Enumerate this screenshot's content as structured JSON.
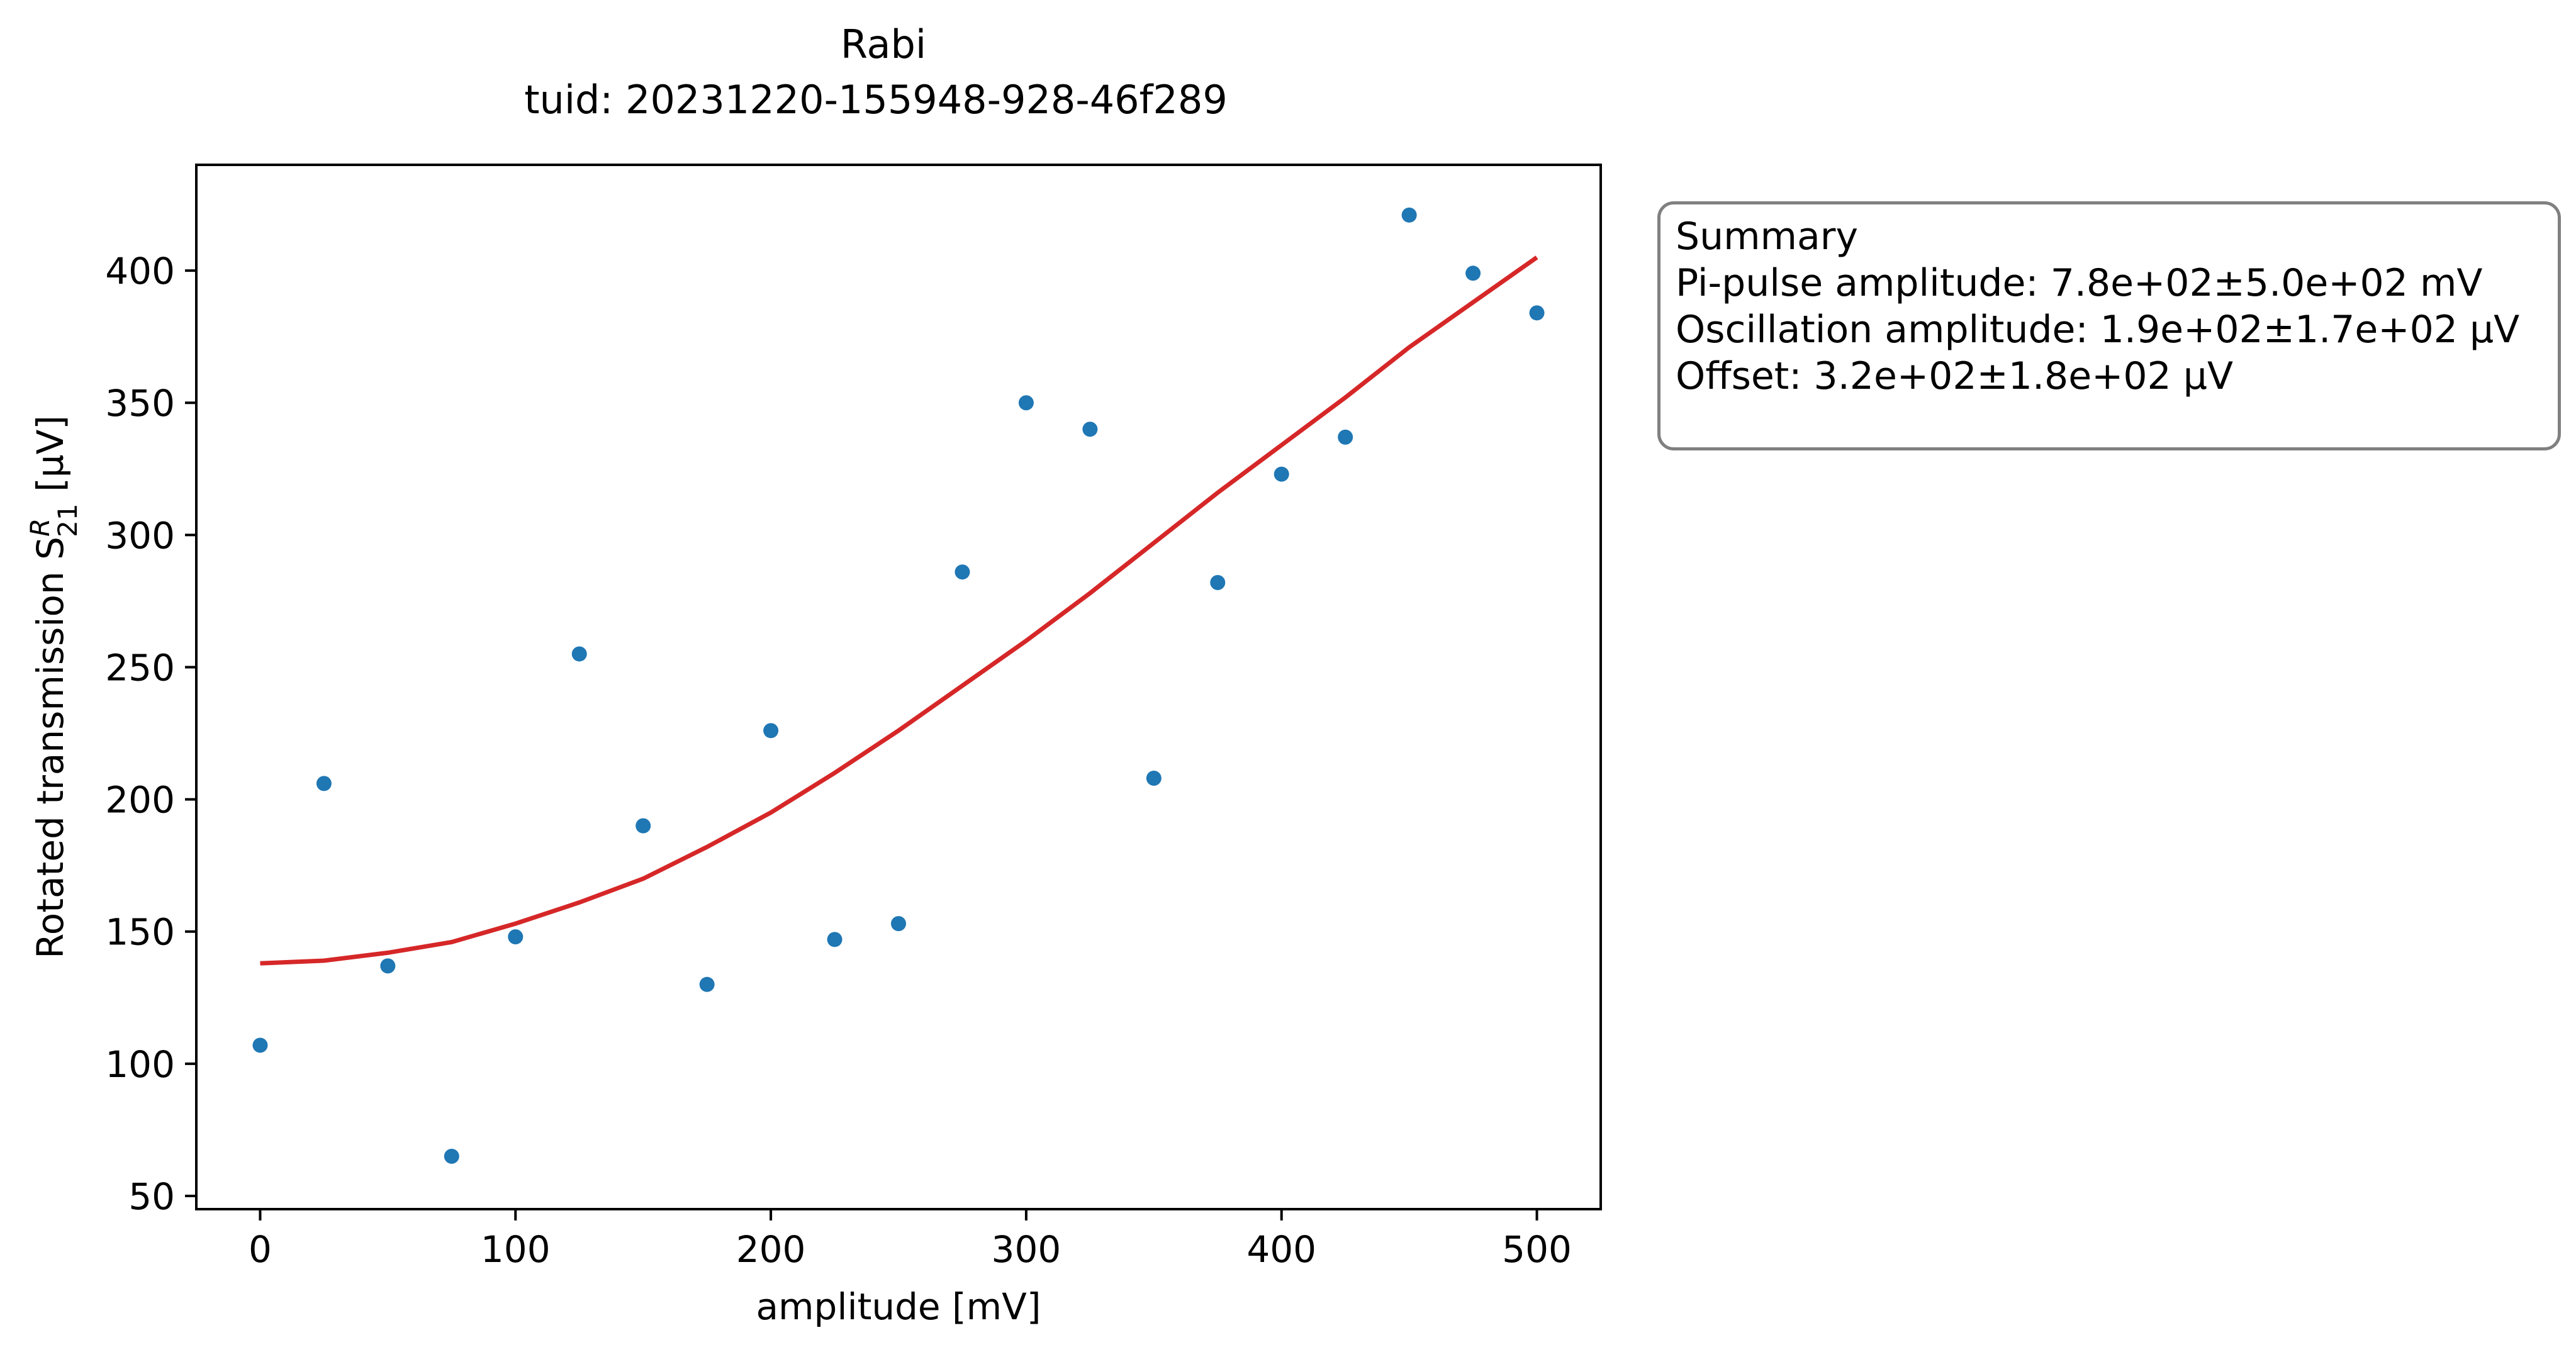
{
  "chart_data": {
    "type": "scatter",
    "title": "Rabi",
    "subtitle": "tuid: 20231220-155948-928-46f289",
    "xlabel": "amplitude [mV]",
    "ylabel": "Rotated transmission S",
    "ylabel_sup": "R",
    "ylabel_sub": "21",
    "ylabel_unit": " [µV]",
    "xlim": [
      -25,
      525
    ],
    "ylim": [
      45,
      440
    ],
    "xticks": [
      0,
      100,
      200,
      300,
      400,
      500
    ],
    "yticks": [
      50,
      100,
      150,
      200,
      250,
      300,
      350,
      400
    ],
    "grid": false,
    "series": [
      {
        "kind": "points",
        "color": "#1f77b4",
        "x": [
          0,
          25,
          50,
          75,
          100,
          125,
          150,
          175,
          200,
          225,
          250,
          275,
          300,
          325,
          350,
          375,
          400,
          425,
          450,
          475,
          500
        ],
        "y": [
          107,
          206,
          137,
          65,
          148,
          255,
          190,
          130,
          226,
          147,
          153,
          286,
          350,
          340,
          208,
          282,
          323,
          337,
          421,
          399,
          384
        ]
      },
      {
        "kind": "fit",
        "color": "#d62728",
        "x": [
          0,
          25,
          50,
          75,
          100,
          125,
          150,
          175,
          200,
          225,
          250,
          275,
          300,
          325,
          350,
          375,
          400,
          425,
          450,
          475,
          500
        ],
        "y": [
          138,
          139,
          142,
          146,
          153,
          161,
          170,
          182,
          195,
          210,
          226,
          243,
          260,
          278,
          297,
          316,
          334,
          352,
          371,
          388,
          405
        ]
      }
    ]
  },
  "summary": {
    "title": "Summary",
    "lines": [
      "Pi-pulse amplitude: 7.8e+02±5.0e+02 mV",
      "Oscillation amplitude: 1.9e+02±1.7e+02 µV",
      "Offset: 3.2e+02±1.8e+02 µV"
    ]
  }
}
